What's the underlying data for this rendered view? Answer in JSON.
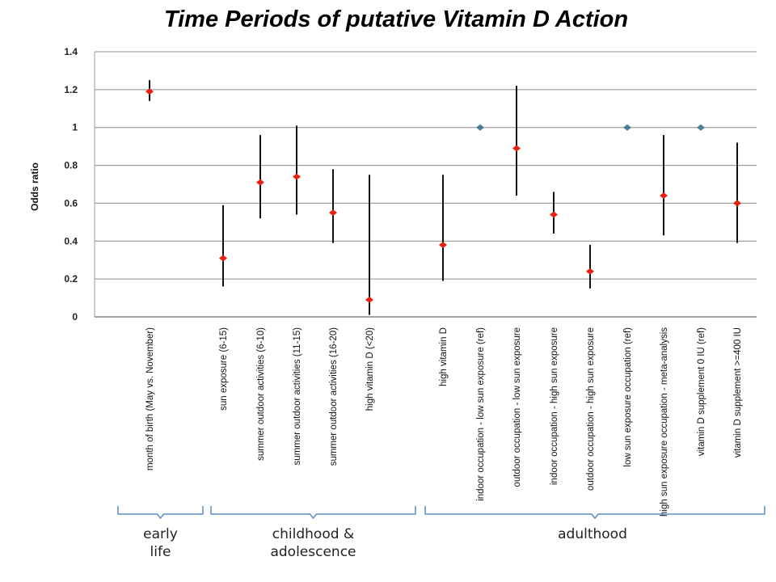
{
  "chart_data": {
    "type": "scatter",
    "title": "Time Periods of putative Vitamin D Action",
    "ylabel": "Odds ratio",
    "ylim": [
      0,
      1.4
    ],
    "yticks": [
      0,
      0.2,
      0.4,
      0.6,
      0.8,
      1,
      1.2,
      1.4
    ],
    "grid": true,
    "categories": [
      "month of birth (May vs. November)",
      "sun exposure (6-15)",
      "summer outdoor activities (6-10)",
      "summer outdoor activities (11-15)",
      "summer outdoor activities (16-20)",
      "high vitamin D (<20)",
      "high vitamin D",
      "indoor occupation - low sun exposure (ref)",
      "outdoor occupation - low sun exposure",
      "indoor occupation - high sun exposure",
      "outdoor occupation - high sun exposure",
      "low sun exposure occupation (ref)",
      "high sun exposure occupation - meta-analysis",
      "vitamin D supplement 0 IU (ref)",
      "vitamin D supplement >=400 IU"
    ],
    "points": [
      {
        "category": "month of birth (May vs. November)",
        "value": 1.19,
        "lower": 1.14,
        "upper": 1.25,
        "reference": false
      },
      {
        "category": "sun exposure (6-15)",
        "value": 0.31,
        "lower": 0.16,
        "upper": 0.59,
        "reference": false
      },
      {
        "category": "summer outdoor activities (6-10)",
        "value": 0.71,
        "lower": 0.52,
        "upper": 0.96,
        "reference": false
      },
      {
        "category": "summer outdoor activities (11-15)",
        "value": 0.74,
        "lower": 0.54,
        "upper": 1.01,
        "reference": false
      },
      {
        "category": "summer outdoor activities (16-20)",
        "value": 0.55,
        "lower": 0.39,
        "upper": 0.78,
        "reference": false
      },
      {
        "category": "high vitamin D (<20)",
        "value": 0.09,
        "lower": 0.01,
        "upper": 0.75,
        "reference": false
      },
      {
        "category": "high vitamin D",
        "value": 0.38,
        "lower": 0.19,
        "upper": 0.75,
        "reference": false
      },
      {
        "category": "indoor occupation - low sun exposure (ref)",
        "value": 1.0,
        "lower": null,
        "upper": null,
        "reference": true
      },
      {
        "category": "outdoor occupation - low sun exposure",
        "value": 0.89,
        "lower": 0.64,
        "upper": 1.22,
        "reference": false
      },
      {
        "category": "indoor occupation - high sun exposure",
        "value": 0.54,
        "lower": 0.44,
        "upper": 0.66,
        "reference": false
      },
      {
        "category": "outdoor occupation - high sun exposure",
        "value": 0.24,
        "lower": 0.15,
        "upper": 0.38,
        "reference": false
      },
      {
        "category": "low sun exposure occupation (ref)",
        "value": 1.0,
        "lower": null,
        "upper": null,
        "reference": true
      },
      {
        "category": "high sun exposure occupation - meta-analysis",
        "value": 0.64,
        "lower": 0.43,
        "upper": 0.96,
        "reference": false
      },
      {
        "category": "vitamin D supplement 0 IU (ref)",
        "value": 1.0,
        "lower": null,
        "upper": null,
        "reference": true
      },
      {
        "category": "vitamin D supplement >=400 IU",
        "value": 0.6,
        "lower": 0.39,
        "upper": 0.92,
        "reference": false
      }
    ],
    "groups": [
      {
        "label_line1": "early",
        "label_line2": "life",
        "from": 0,
        "to": 0
      },
      {
        "label_line1": "childhood &",
        "label_line2": "adolescence",
        "from": 1,
        "to": 5
      },
      {
        "label_line1": "adulthood",
        "label_line2": "",
        "from": 6,
        "to": 14
      }
    ],
    "colors": {
      "estimate": "#e8200e",
      "reference": "#4a7f9c",
      "error_bar": "#111111",
      "grid": "#8c8c8c",
      "bracket": "#5b8fc7"
    }
  }
}
